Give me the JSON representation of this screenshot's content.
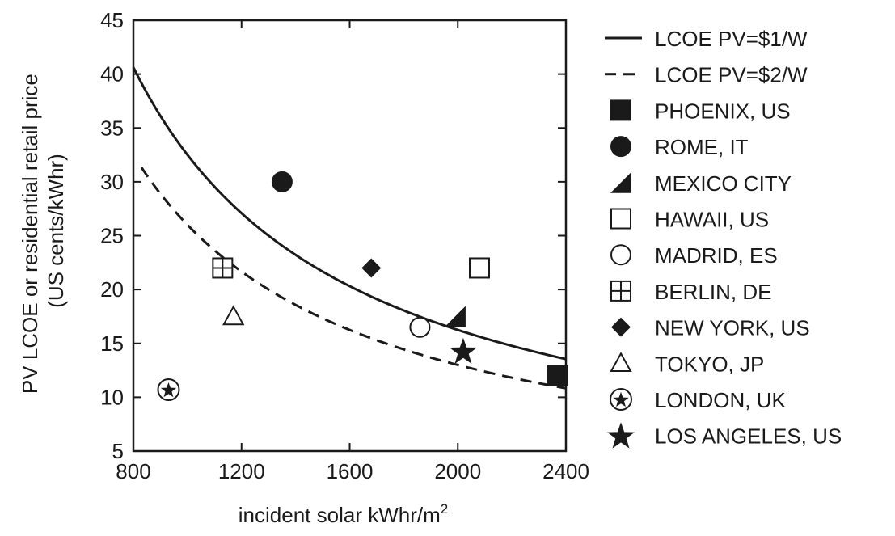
{
  "chart_data": {
    "type": "scatter",
    "title": "",
    "xlabel": "incident solar kWhr/m",
    "xlabel_sup": "2",
    "ylabel_line1": "PV LCOE  or residential retail price",
    "ylabel_line2": "(US cents/kWhr)",
    "xlim": [
      800,
      2400
    ],
    "ylim": [
      5,
      45
    ],
    "xticks": [
      800,
      1200,
      1600,
      2000,
      2400
    ],
    "yticks": [
      5,
      10,
      15,
      20,
      25,
      30,
      35,
      40,
      45
    ],
    "legend_position": "right",
    "curves": [
      {
        "name": "LCOE PV=$1/W",
        "style": "solid",
        "x_range": [
          800,
          2400
        ],
        "formula": "k/x",
        "k": 32500
      },
      {
        "name": "LCOE PV=$2/W",
        "style": "dashed",
        "x_range": [
          830,
          2400
        ],
        "formula": "k/x",
        "k": 26000
      }
    ],
    "points": [
      {
        "name": "PHOENIX, US",
        "marker": "square-filled",
        "x": 2370,
        "y": 12
      },
      {
        "name": "ROME, IT",
        "marker": "circle-filled",
        "x": 1350,
        "y": 30
      },
      {
        "name": "MEXICO CITY",
        "marker": "triangle-corner-filled",
        "x": 1990,
        "y": 17.5
      },
      {
        "name": "HAWAII, US",
        "marker": "square-open",
        "x": 2080,
        "y": 22
      },
      {
        "name": "MADRID, ES",
        "marker": "circle-open",
        "x": 1860,
        "y": 16.5
      },
      {
        "name": "BERLIN, DE",
        "marker": "square-grid",
        "x": 1130,
        "y": 22
      },
      {
        "name": "NEW YORK, US",
        "marker": "diamond-filled",
        "x": 1680,
        "y": 22
      },
      {
        "name": "TOKYO, JP",
        "marker": "triangle-open",
        "x": 1170,
        "y": 17.5
      },
      {
        "name": "LONDON, UK",
        "marker": "star-in-circle",
        "x": 930,
        "y": 10.7
      },
      {
        "name": "LOS ANGELES, US",
        "marker": "star-filled",
        "x": 2020,
        "y": 14.3
      }
    ]
  }
}
